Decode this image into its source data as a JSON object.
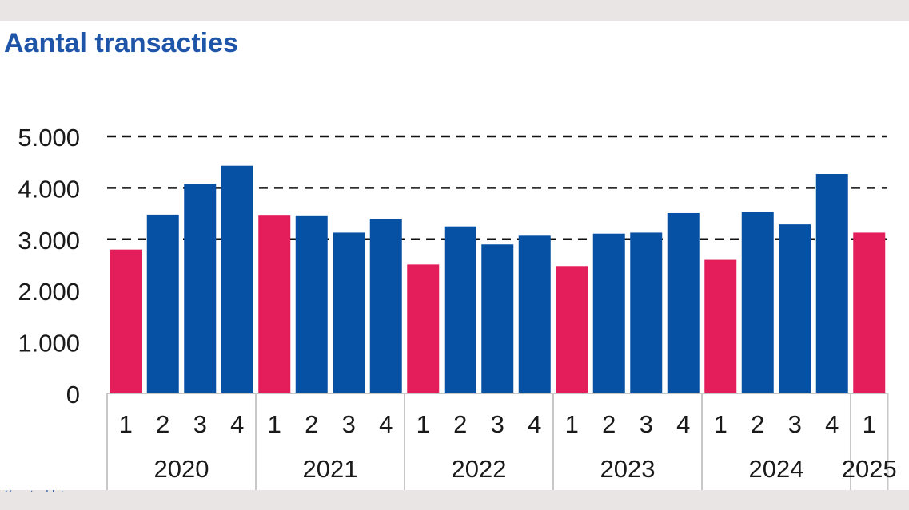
{
  "header": {
    "title": "Aantal transacties",
    "footer_note": "Kwartaaldata"
  },
  "colors": {
    "q1": "#e41e5a",
    "other": "#0751a5",
    "grid": "#111111",
    "axis": "#c8c8c8"
  },
  "chart_data": {
    "type": "bar",
    "title": "Aantal transacties",
    "xlabel": "",
    "ylabel": "",
    "ylim": [
      0,
      5000
    ],
    "y_ticks": [
      "0",
      "1.000",
      "2.000",
      "3.000",
      "4.000",
      "5.000"
    ],
    "grid": "dashed horizontal at 3.000, 4.000, 5.000",
    "groups": [
      {
        "year": "2020",
        "quarters": [
          "1",
          "2",
          "3",
          "4"
        ],
        "values": [
          2800,
          3480,
          4080,
          4430
        ]
      },
      {
        "year": "2021",
        "quarters": [
          "1",
          "2",
          "3",
          "4"
        ],
        "values": [
          3460,
          3450,
          3130,
          3400
        ]
      },
      {
        "year": "2022",
        "quarters": [
          "1",
          "2",
          "3",
          "4"
        ],
        "values": [
          2510,
          3250,
          2900,
          3070
        ]
      },
      {
        "year": "2023",
        "quarters": [
          "1",
          "2",
          "3",
          "4"
        ],
        "values": [
          2480,
          3110,
          3130,
          3510
        ]
      },
      {
        "year": "2024",
        "quarters": [
          "1",
          "2",
          "3",
          "4"
        ],
        "values": [
          2600,
          3540,
          3290,
          4270
        ]
      },
      {
        "year": "2025",
        "quarters": [
          "1"
        ],
        "values": [
          3130
        ]
      }
    ]
  }
}
